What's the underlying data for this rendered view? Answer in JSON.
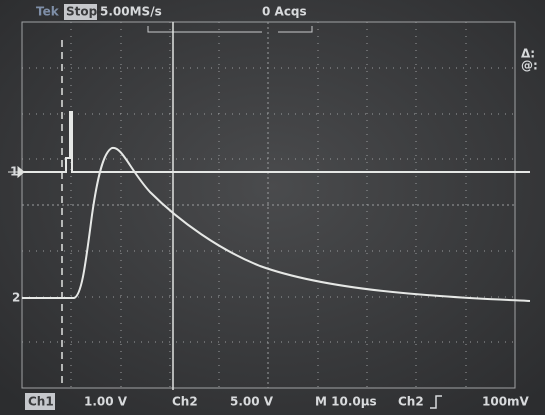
{
  "header": {
    "brand": "Tek",
    "state": "Stop:",
    "sample_rate": "5.00MS/s",
    "acquisitions": "0 Acqs"
  },
  "side": {
    "delta": "Δ:",
    "at": "@:"
  },
  "markers": {
    "ch1": "1",
    "ch2": "2"
  },
  "footer": {
    "ch1_label": "Ch1",
    "ch1_scale": "1.00 V",
    "ch2_label": "Ch2",
    "ch2_scale": "5.00 V",
    "timebase": "M 10.0µs",
    "trigger_source": "Ch2",
    "trigger_level": "100mV"
  }
}
